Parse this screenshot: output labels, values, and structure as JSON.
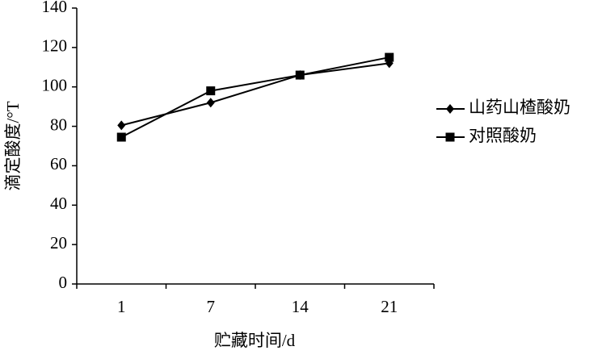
{
  "chart_data": {
    "type": "line",
    "x_label": "贮藏时间/d",
    "y_label": "滴定酸度/°T",
    "categories": [
      "1",
      "7",
      "14",
      "21"
    ],
    "series": [
      {
        "name": "山药山楂酸奶",
        "color": "#000000",
        "marker": "diamond",
        "values": [
          80.5,
          92,
          106,
          112
        ]
      },
      {
        "name": "对照酸奶",
        "color": "#000000",
        "marker": "square",
        "values": [
          74.5,
          98,
          106,
          115
        ]
      }
    ],
    "ylim": [
      0,
      140
    ],
    "yticks": [
      0,
      20,
      40,
      60,
      80,
      100,
      120,
      140
    ],
    "grid": false,
    "legend": "right"
  }
}
